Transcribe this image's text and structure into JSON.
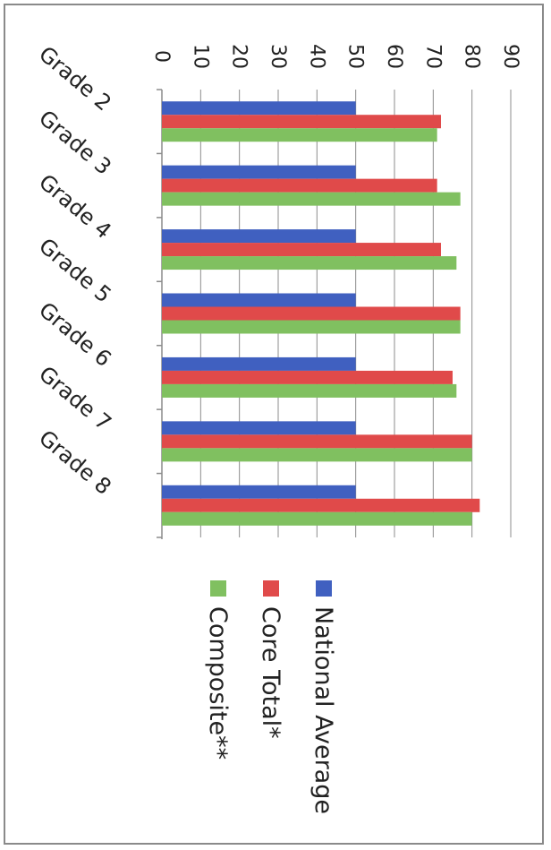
{
  "chart_data": {
    "type": "bar",
    "orientation": "rotated-90-clockwise",
    "categories": [
      "Grade 2",
      "Grade 3",
      "Grade 4",
      "Grade 5",
      "Grade 6",
      "Grade 7",
      "Grade 8"
    ],
    "series": [
      {
        "name": "National Average",
        "color": "#4060c0",
        "values": [
          50,
          50,
          50,
          50,
          50,
          50,
          50
        ]
      },
      {
        "name": "Core Total*",
        "color": "#e04a4a",
        "values": [
          72,
          71,
          72,
          77,
          75,
          80,
          82
        ]
      },
      {
        "name": "Composite**",
        "color": "#80c060",
        "values": [
          71,
          77,
          76,
          77,
          76,
          80,
          80
        ]
      }
    ],
    "ylim": [
      0,
      90
    ],
    "yticks": [
      "0",
      "10",
      "20",
      "30",
      "40",
      "50",
      "60",
      "70",
      "80",
      "90"
    ],
    "grid": true,
    "legend": "below"
  }
}
